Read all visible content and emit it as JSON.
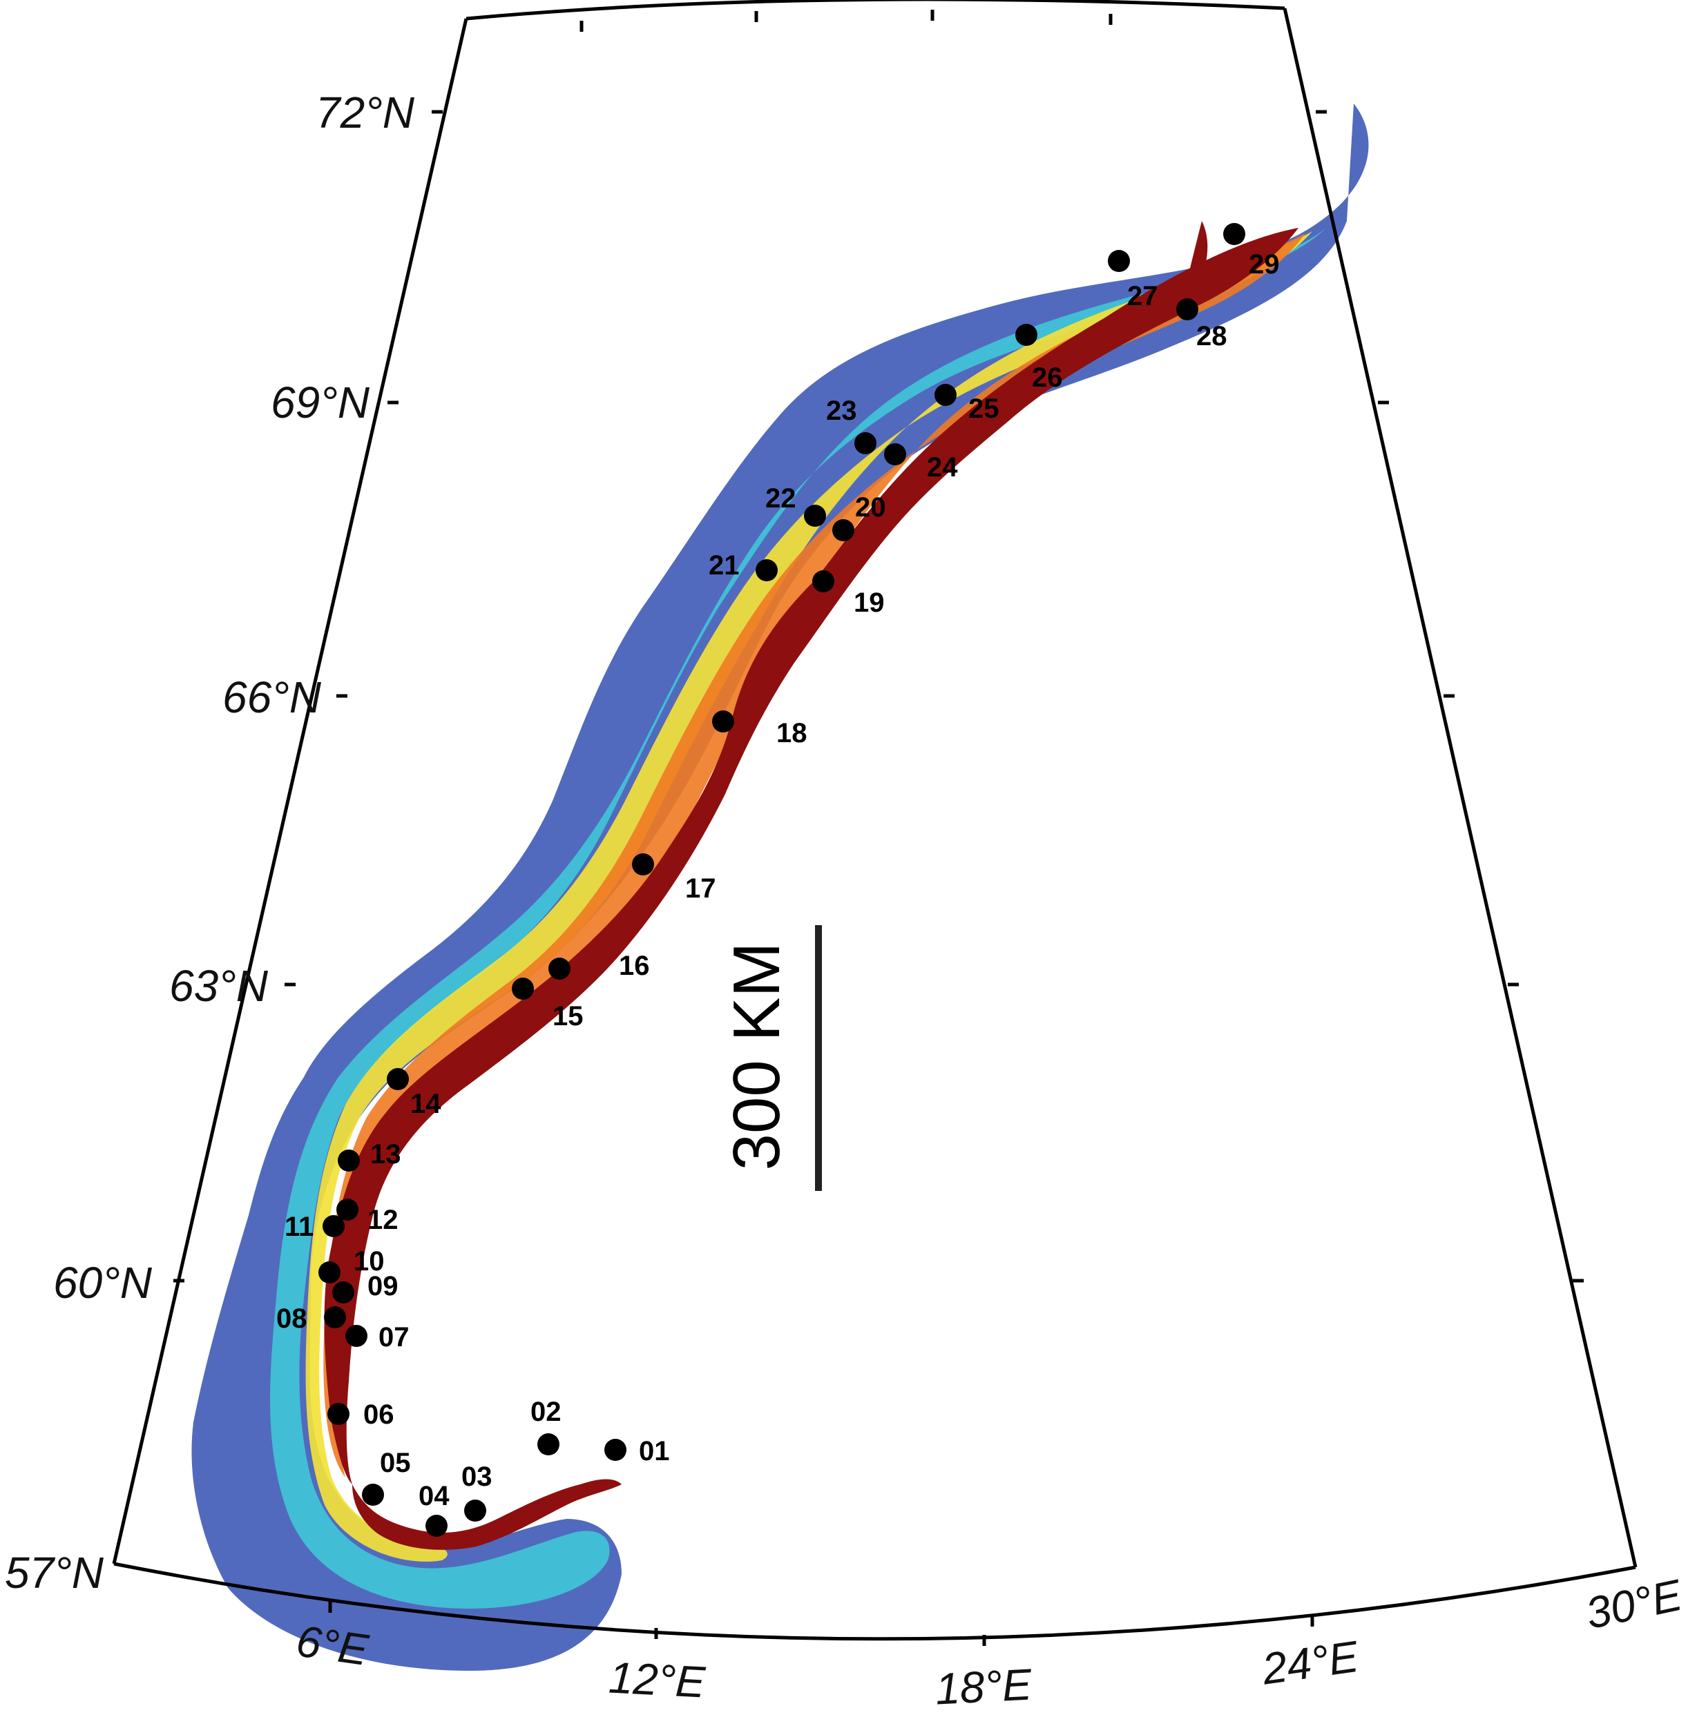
{
  "map": {
    "lat_labels": [
      {
        "lat": 72,
        "text": "72°N"
      },
      {
        "lat": 69,
        "text": "69°N"
      },
      {
        "lat": 66,
        "text": "66°N"
      },
      {
        "lat": 63,
        "text": "63°N"
      },
      {
        "lat": 60,
        "text": "60°N"
      },
      {
        "lat": 57,
        "text": "57°N"
      }
    ],
    "lon_labels": [
      {
        "lon": 6,
        "text": "6°E"
      },
      {
        "lon": 12,
        "text": "12°E"
      },
      {
        "lon": 18,
        "text": "18°E"
      },
      {
        "lon": 24,
        "text": "24°E"
      },
      {
        "lon": 30,
        "text": "30°E"
      }
    ],
    "scale_bar": {
      "label": "300 KM"
    },
    "colors": {
      "deep_blue": "#3a55b4",
      "cyan": "#3fc7d8",
      "yellow": "#f2e23a",
      "orange": "#f07a22",
      "dark_red": "#8e0f0f",
      "marker": "#000000"
    },
    "sites": [
      {
        "id": "01",
        "label": "01"
      },
      {
        "id": "02",
        "label": "02"
      },
      {
        "id": "03",
        "label": "03"
      },
      {
        "id": "04",
        "label": "04"
      },
      {
        "id": "05",
        "label": "05"
      },
      {
        "id": "06",
        "label": "06"
      },
      {
        "id": "07",
        "label": "07"
      },
      {
        "id": "08",
        "label": "08"
      },
      {
        "id": "09",
        "label": "09"
      },
      {
        "id": "10",
        "label": "10"
      },
      {
        "id": "11",
        "label": "11"
      },
      {
        "id": "12",
        "label": "12"
      },
      {
        "id": "13",
        "label": "13"
      },
      {
        "id": "14",
        "label": "14"
      },
      {
        "id": "15",
        "label": "15"
      },
      {
        "id": "16",
        "label": "16"
      },
      {
        "id": "17",
        "label": "17"
      },
      {
        "id": "18",
        "label": "18"
      },
      {
        "id": "19",
        "label": "19"
      },
      {
        "id": "20",
        "label": "20"
      },
      {
        "id": "21",
        "label": "21"
      },
      {
        "id": "22",
        "label": "22"
      },
      {
        "id": "23",
        "label": "23"
      },
      {
        "id": "24",
        "label": "24"
      },
      {
        "id": "25",
        "label": "25"
      },
      {
        "id": "26",
        "label": "26"
      },
      {
        "id": "27",
        "label": "27"
      },
      {
        "id": "28",
        "label": "28"
      },
      {
        "id": "29",
        "label": "29"
      }
    ]
  }
}
